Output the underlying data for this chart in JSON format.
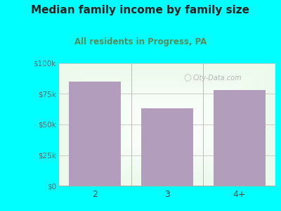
{
  "categories": [
    "2",
    "3",
    "4+"
  ],
  "values": [
    85000,
    63000,
    78000
  ],
  "bar_color": "#b39dbd",
  "title": "Median family income by family size",
  "subtitle": "All residents in Progress, PA",
  "title_fontsize": 11,
  "subtitle_fontsize": 8.5,
  "title_color": "#222222",
  "subtitle_color": "#5a8a5a",
  "background_color": "#00FFFF",
  "plot_bg_color": "#e8f5e9",
  "ylim": [
    0,
    100000
  ],
  "yticks": [
    0,
    25000,
    50000,
    75000,
    100000
  ],
  "ytick_labels": [
    "$0",
    "$25k",
    "$50k",
    "$75k",
    "$100k"
  ],
  "ytick_color": "#666666",
  "xtick_color": "#444444",
  "grid_color": "#cccccc",
  "watermark": "City-Data.com"
}
